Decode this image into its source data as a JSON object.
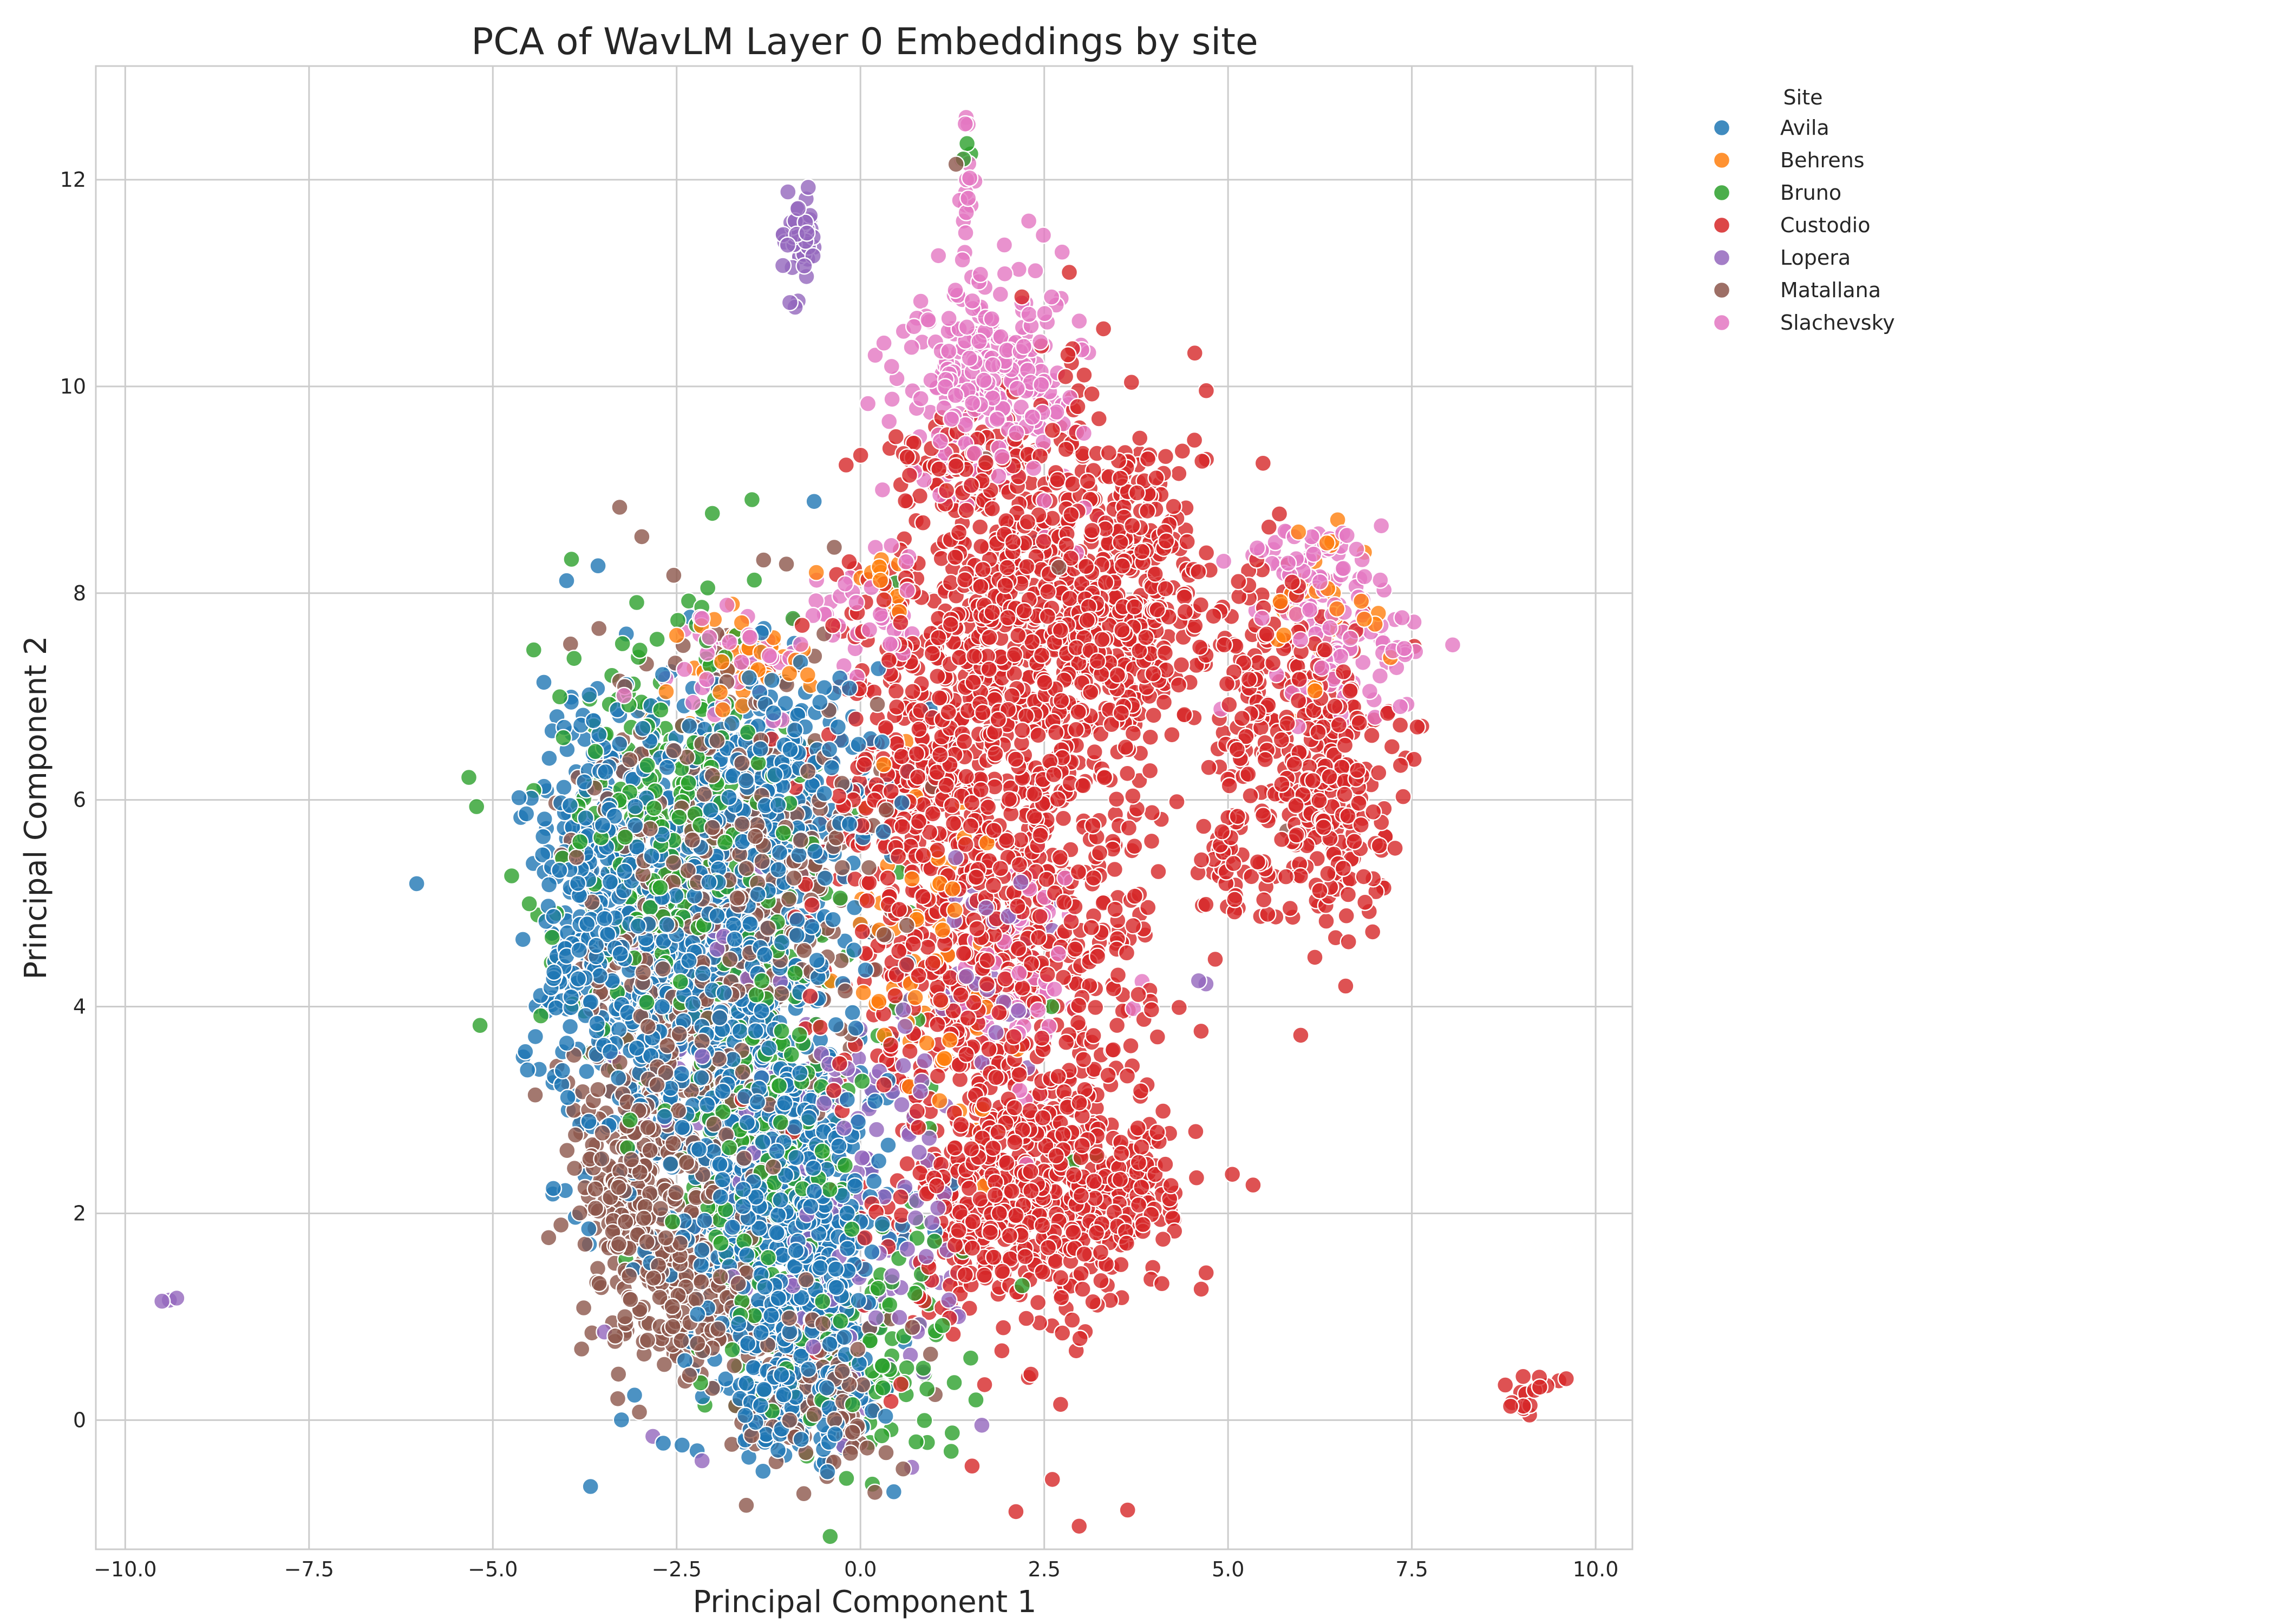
{
  "chart_data": {
    "type": "scatter",
    "title": "PCA of WavLM Layer 0 Embeddings by site",
    "xlabel": "Principal Component 1",
    "ylabel": "Principal Component 2",
    "xlim": [
      -10.4,
      10.5
    ],
    "ylim": [
      -1.25,
      13.1
    ],
    "xticks": [
      -10.0,
      -7.5,
      -5.0,
      -2.5,
      0.0,
      2.5,
      5.0,
      7.5,
      10.0
    ],
    "xtick_labels": [
      "−10.0",
      "−7.5",
      "−5.0",
      "−2.5",
      "0.0",
      "2.5",
      "5.0",
      "7.5",
      "10.0"
    ],
    "yticks": [
      0,
      2,
      4,
      6,
      8,
      10,
      12
    ],
    "ytick_labels": [
      "0",
      "2",
      "4",
      "6",
      "8",
      "10",
      "12"
    ],
    "grid": true,
    "legend_title": "Site",
    "legend_position": "outside-top-right",
    "series": [
      {
        "name": "Avila",
        "color": "#1f77b4",
        "clusters": [
          {
            "cx": -2.2,
            "cy": 4.6,
            "sx": 0.95,
            "sy": 1.25,
            "n": 900
          },
          {
            "cx": -1.0,
            "cy": 1.9,
            "sx": 0.7,
            "sy": 0.9,
            "n": 650
          },
          {
            "cx": -0.8,
            "cy": 0.3,
            "sx": 0.45,
            "sy": 0.3,
            "n": 180
          },
          {
            "cx": -3.6,
            "cy": 5.1,
            "sx": 0.35,
            "sy": 1.1,
            "n": 220
          },
          {
            "cx": -1.0,
            "cy": 6.3,
            "sx": 0.8,
            "sy": 0.5,
            "n": 150
          }
        ],
        "points": [
          {
            "x": -4.3,
            "y": 5.3
          },
          {
            "x": -4.2,
            "y": 5.35
          },
          {
            "x": 2.4,
            "y": 8.5
          }
        ]
      },
      {
        "name": "Behrens",
        "color": "#ff7f0e",
        "clusters": [
          {
            "cx": -1.5,
            "cy": 7.3,
            "sx": 0.55,
            "sy": 0.25,
            "n": 45
          },
          {
            "cx": 1.0,
            "cy": 4.6,
            "sx": 0.6,
            "sy": 0.9,
            "n": 70
          },
          {
            "cx": 6.3,
            "cy": 7.8,
            "sx": 0.35,
            "sy": 0.5,
            "n": 35
          },
          {
            "cx": 0.2,
            "cy": 8.1,
            "sx": 0.3,
            "sy": 0.15,
            "n": 12
          }
        ],
        "points": [
          {
            "x": -0.6,
            "y": 8.2
          },
          {
            "x": 1.1,
            "y": 9.0
          },
          {
            "x": 2.6,
            "y": 1.9
          },
          {
            "x": 0.2,
            "y": 0.1
          },
          {
            "x": 7.0,
            "y": 7.7
          }
        ]
      },
      {
        "name": "Bruno",
        "color": "#2ca02c",
        "clusters": [
          {
            "cx": -2.6,
            "cy": 5.7,
            "sx": 0.85,
            "sy": 1.1,
            "n": 300
          },
          {
            "cx": -1.2,
            "cy": 2.6,
            "sx": 0.9,
            "sy": 1.2,
            "n": 250
          },
          {
            "cx": 0.3,
            "cy": 0.5,
            "sx": 0.6,
            "sy": 0.4,
            "n": 70
          }
        ],
        "points": [
          {
            "x": 1.4,
            "y": 12.2
          },
          {
            "x": 1.45,
            "y": 12.35
          },
          {
            "x": 1.5,
            "y": 12.25
          },
          {
            "x": 2.9,
            "y": 2.5
          },
          {
            "x": 3.2,
            "y": 2.55
          },
          {
            "x": 2.2,
            "y": 1.3
          },
          {
            "x": 1.5,
            "y": 0.6
          },
          {
            "x": 2.6,
            "y": 4.0
          }
        ]
      },
      {
        "name": "Custodio",
        "color": "#d62728",
        "clusters": [
          {
            "cx": 1.9,
            "cy": 4.6,
            "sx": 1.05,
            "sy": 1.6,
            "n": 900
          },
          {
            "cx": 2.4,
            "cy": 2.1,
            "sx": 0.9,
            "sy": 0.5,
            "n": 450
          },
          {
            "cx": 2.3,
            "cy": 7.8,
            "sx": 0.75,
            "sy": 1.0,
            "n": 500
          },
          {
            "cx": 3.7,
            "cy": 8.0,
            "sx": 0.5,
            "sy": 0.9,
            "n": 320
          },
          {
            "cx": 6.3,
            "cy": 6.2,
            "sx": 0.45,
            "sy": 0.7,
            "n": 260
          },
          {
            "cx": 5.4,
            "cy": 7.2,
            "sx": 0.4,
            "sy": 0.7,
            "n": 120
          },
          {
            "cx": 5.0,
            "cy": 5.4,
            "sx": 0.25,
            "sy": 0.3,
            "n": 40
          },
          {
            "cx": 1.2,
            "cy": 9.1,
            "sx": 0.5,
            "sy": 0.3,
            "n": 70
          },
          {
            "cx": 0.7,
            "cy": 6.5,
            "sx": 0.6,
            "sy": 1.0,
            "n": 200
          },
          {
            "cx": 3.8,
            "cy": 2.3,
            "sx": 0.3,
            "sy": 0.3,
            "n": 40
          },
          {
            "cx": 9.05,
            "cy": 0.2,
            "sx": 0.14,
            "sy": 0.12,
            "n": 14
          }
        ],
        "points": [
          {
            "x": 4.7,
            "y": 7.4
          },
          {
            "x": 5.0,
            "y": 6.2
          },
          {
            "x": 9.6,
            "y": 0.4
          },
          {
            "x": 9.5,
            "y": 0.38
          },
          {
            "x": 3.8,
            "y": 9.5
          }
        ]
      },
      {
        "name": "Lopera",
        "color": "#9467bd",
        "clusters": [
          {
            "cx": -0.85,
            "cy": 11.4,
            "sx": 0.12,
            "sy": 0.3,
            "n": 45
          },
          {
            "cx": 0.3,
            "cy": 2.2,
            "sx": 0.7,
            "sy": 1.2,
            "n": 130
          },
          {
            "cx": -1.5,
            "cy": 3.2,
            "sx": 0.9,
            "sy": 1.3,
            "n": 60
          },
          {
            "cx": 1.8,
            "cy": 4.4,
            "sx": 0.5,
            "sy": 0.6,
            "n": 30
          }
        ],
        "points": [
          {
            "x": -9.5,
            "y": 1.15
          },
          {
            "x": -9.3,
            "y": 1.18
          },
          {
            "x": -9.4,
            "y": 1.16
          },
          {
            "x": 4.6,
            "y": 4.25
          },
          {
            "x": 4.7,
            "y": 4.22
          },
          {
            "x": -1.4,
            "y": -0.05
          }
        ]
      },
      {
        "name": "Matallana",
        "color": "#8c564b",
        "clusters": [
          {
            "cx": -2.9,
            "cy": 2.0,
            "sx": 0.45,
            "sy": 0.7,
            "n": 320
          },
          {
            "cx": -2.3,
            "cy": 4.4,
            "sx": 0.8,
            "sy": 1.4,
            "n": 420
          },
          {
            "cx": -0.6,
            "cy": 0.2,
            "sx": 0.5,
            "sy": 0.4,
            "n": 110
          },
          {
            "cx": -1.0,
            "cy": 5.6,
            "sx": 0.7,
            "sy": 0.9,
            "n": 160
          },
          {
            "cx": -2.0,
            "cy": 1.1,
            "sx": 0.5,
            "sy": 0.3,
            "n": 80
          }
        ],
        "points": [
          {
            "x": 1.3,
            "y": 12.15
          },
          {
            "x": 1.7,
            "y": 9.3
          },
          {
            "x": 2.7,
            "y": 8.25
          },
          {
            "x": 5.8,
            "y": 5.7
          }
        ]
      },
      {
        "name": "Slachevsky",
        "color": "#e377c2",
        "clusters": [
          {
            "cx": 1.8,
            "cy": 10.1,
            "sx": 0.6,
            "sy": 0.55,
            "n": 280
          },
          {
            "cx": 6.6,
            "cy": 7.6,
            "sx": 0.55,
            "sy": 0.45,
            "n": 110
          },
          {
            "cx": 0.1,
            "cy": 7.8,
            "sx": 0.4,
            "sy": 0.35,
            "n": 40
          },
          {
            "cx": -1.6,
            "cy": 7.4,
            "sx": 0.5,
            "sy": 0.25,
            "n": 40
          },
          {
            "cx": 2.3,
            "cy": 4.2,
            "sx": 0.5,
            "sy": 0.6,
            "n": 60
          },
          {
            "cx": 5.9,
            "cy": 8.3,
            "sx": 0.35,
            "sy": 0.2,
            "n": 30
          },
          {
            "cx": 1.45,
            "cy": 12.0,
            "sx": 0.06,
            "sy": 0.35,
            "n": 14
          }
        ],
        "points": [
          {
            "x": 0.3,
            "y": 9.0
          },
          {
            "x": 1.4,
            "y": 11.6
          },
          {
            "x": 1.35,
            "y": 11.8
          },
          {
            "x": 3.0,
            "y": 10.4
          },
          {
            "x": 6.3,
            "y": 6.8
          },
          {
            "x": 7.0,
            "y": 6.8
          }
        ]
      }
    ]
  }
}
